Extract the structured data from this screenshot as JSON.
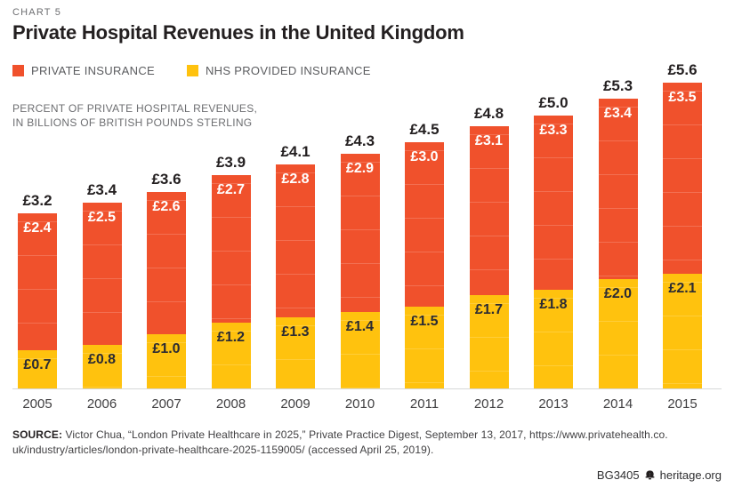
{
  "header": {
    "kicker": "CHART 5",
    "title": "Private Hospital Revenues in the United Kingdom"
  },
  "legend": [
    {
      "label": "PRIVATE INSURANCE",
      "color": "#F0512C"
    },
    {
      "label": "NHS PROVIDED INSURANCE",
      "color": "#FFC20E"
    }
  ],
  "subtitle": {
    "line1": "PERCENT OF PRIVATE HOSPITAL REVENUES,",
    "line2": "IN BILLIONS OF BRITISH POUNDS STERLING"
  },
  "chart_data": {
    "type": "bar",
    "stacked": true,
    "title": "Private Hospital Revenues in the United Kingdom",
    "units": "billions of British pounds sterling",
    "currency_prefix": "£",
    "categories": [
      "2005",
      "2006",
      "2007",
      "2008",
      "2009",
      "2010",
      "2011",
      "2012",
      "2013",
      "2014",
      "2015"
    ],
    "series": [
      {
        "name": "PRIVATE INSURANCE",
        "color": "#F0512C",
        "values": [
          2.4,
          2.5,
          2.6,
          2.7,
          2.8,
          2.9,
          3.0,
          3.1,
          3.3,
          3.4,
          3.5
        ]
      },
      {
        "name": "NHS PROVIDED INSURANCE",
        "color": "#FFC20E",
        "values": [
          0.7,
          0.8,
          1.0,
          1.2,
          1.3,
          1.4,
          1.5,
          1.7,
          1.8,
          2.0,
          2.1
        ]
      }
    ],
    "totals": [
      3.2,
      3.4,
      3.6,
      3.9,
      4.1,
      4.3,
      4.5,
      4.8,
      5.0,
      5.3,
      5.6
    ],
    "ylim": [
      0,
      5.8
    ],
    "grid": false,
    "legend_position": "top"
  },
  "footer": {
    "source_label": "SOURCE:",
    "source_line1": "Victor Chua,  “London Private Healthcare in 2025,” Private Practice Digest, September 13, 2017, https://www.privatehealth.co.",
    "source_line2": "uk/industry/articles/london-private-healthcare-2025-1159005/ (accessed April 25, 2019).",
    "doc_id": "BG3405",
    "site": "heritage.org"
  }
}
